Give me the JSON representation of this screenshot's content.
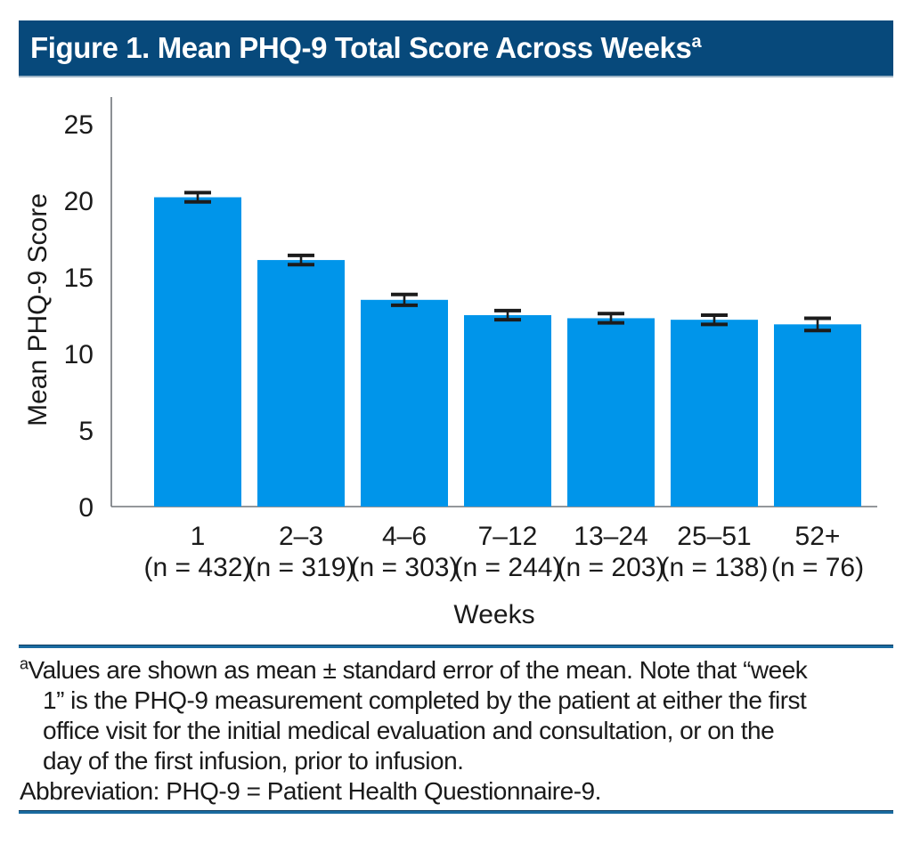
{
  "figure": {
    "title": "Figure 1. Mean PHQ-9 Total Score Across Weeks",
    "title_superscript": "a"
  },
  "chart_data": {
    "type": "bar",
    "categories": [
      "1",
      "2–3",
      "4–6",
      "7–12",
      "13–24",
      "25–51",
      "52+"
    ],
    "n_labels": [
      "(n = 432)",
      "(n = 319)",
      "(n = 303)",
      "(n = 244)",
      "(n = 203)",
      "(n = 138)",
      "(n = 76)"
    ],
    "values": [
      20.2,
      16.1,
      13.5,
      12.5,
      12.3,
      12.2,
      11.9
    ],
    "standard_errors": [
      0.3,
      0.3,
      0.35,
      0.3,
      0.3,
      0.3,
      0.4
    ],
    "xlabel": "Weeks",
    "ylabel": "Mean PHQ-9 Score",
    "ylim": [
      0,
      25
    ],
    "yticks": [
      0,
      5,
      10,
      15,
      20,
      25
    ],
    "grid": false,
    "legend": "none",
    "bar_color": "#0095EA",
    "error_bar_color": "#1c1c1c",
    "axis_color": "#70757a"
  },
  "footnote": {
    "marker": "a",
    "lines": [
      "Values are shown as mean ± standard error of the mean. Note that “week",
      "1” is the PHQ-9 measurement completed by the patient at either the first",
      "office visit for the initial medical evaluation and consultation, or on the",
      "day of the first infusion, prior to infusion."
    ],
    "abbreviation": "Abbreviation: PHQ-9 = Patient Health Questionnaire-9."
  },
  "colors": {
    "title_bar_bg": "#07497B",
    "title_text": "#FFFFFF",
    "rule": "#1A6BA0",
    "text": "#1A1A1A"
  }
}
